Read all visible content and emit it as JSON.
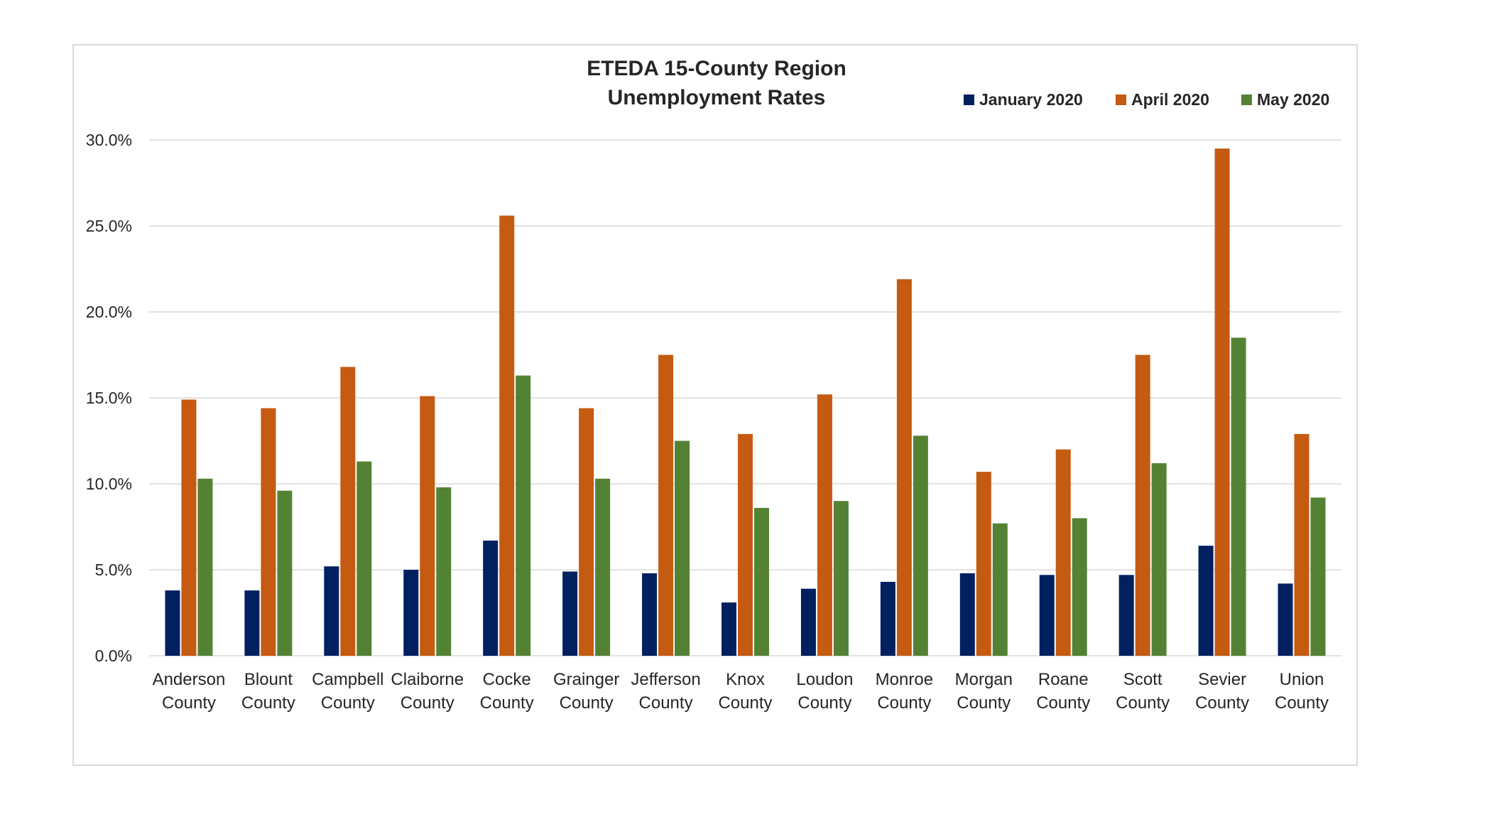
{
  "chart_data": {
    "type": "bar",
    "title": [
      "ETEDA 15-County Region",
      "Unemployment Rates"
    ],
    "ylim": [
      0,
      30
    ],
    "yticks": [
      "0.0%",
      "5.0%",
      "10.0%",
      "15.0%",
      "20.0%",
      "25.0%",
      "30.0%"
    ],
    "grid": true,
    "legend_position": "top-right",
    "categories": [
      [
        "Anderson",
        "County"
      ],
      [
        "Blount",
        "County"
      ],
      [
        "Campbell",
        "County"
      ],
      [
        "Claiborne",
        "County"
      ],
      [
        "Cocke",
        "County"
      ],
      [
        "Grainger",
        "County"
      ],
      [
        "Jefferson",
        "County"
      ],
      [
        "Knox",
        "County"
      ],
      [
        "Loudon",
        "County"
      ],
      [
        "Monroe",
        "County"
      ],
      [
        "Morgan",
        "County"
      ],
      [
        "Roane",
        "County"
      ],
      [
        "Scott",
        "County"
      ],
      [
        "Sevier",
        "County"
      ],
      [
        "Union",
        "County"
      ]
    ],
    "series": [
      {
        "name": "January 2020",
        "color": "#002060",
        "values": [
          3.8,
          3.8,
          5.2,
          5.0,
          6.7,
          4.9,
          4.8,
          3.1,
          3.9,
          4.3,
          4.8,
          4.7,
          4.7,
          6.4,
          4.2
        ]
      },
      {
        "name": "April 2020",
        "color": "#C55A11",
        "values": [
          14.9,
          14.4,
          16.8,
          15.1,
          25.6,
          14.4,
          17.5,
          12.9,
          15.2,
          21.9,
          10.7,
          12.0,
          17.5,
          29.5,
          12.9
        ]
      },
      {
        "name": "May 2020",
        "color": "#548235",
        "values": [
          10.3,
          9.6,
          11.3,
          9.8,
          16.3,
          10.3,
          12.5,
          8.6,
          9.0,
          12.8,
          7.7,
          8.0,
          11.2,
          18.5,
          9.2
        ]
      }
    ]
  }
}
